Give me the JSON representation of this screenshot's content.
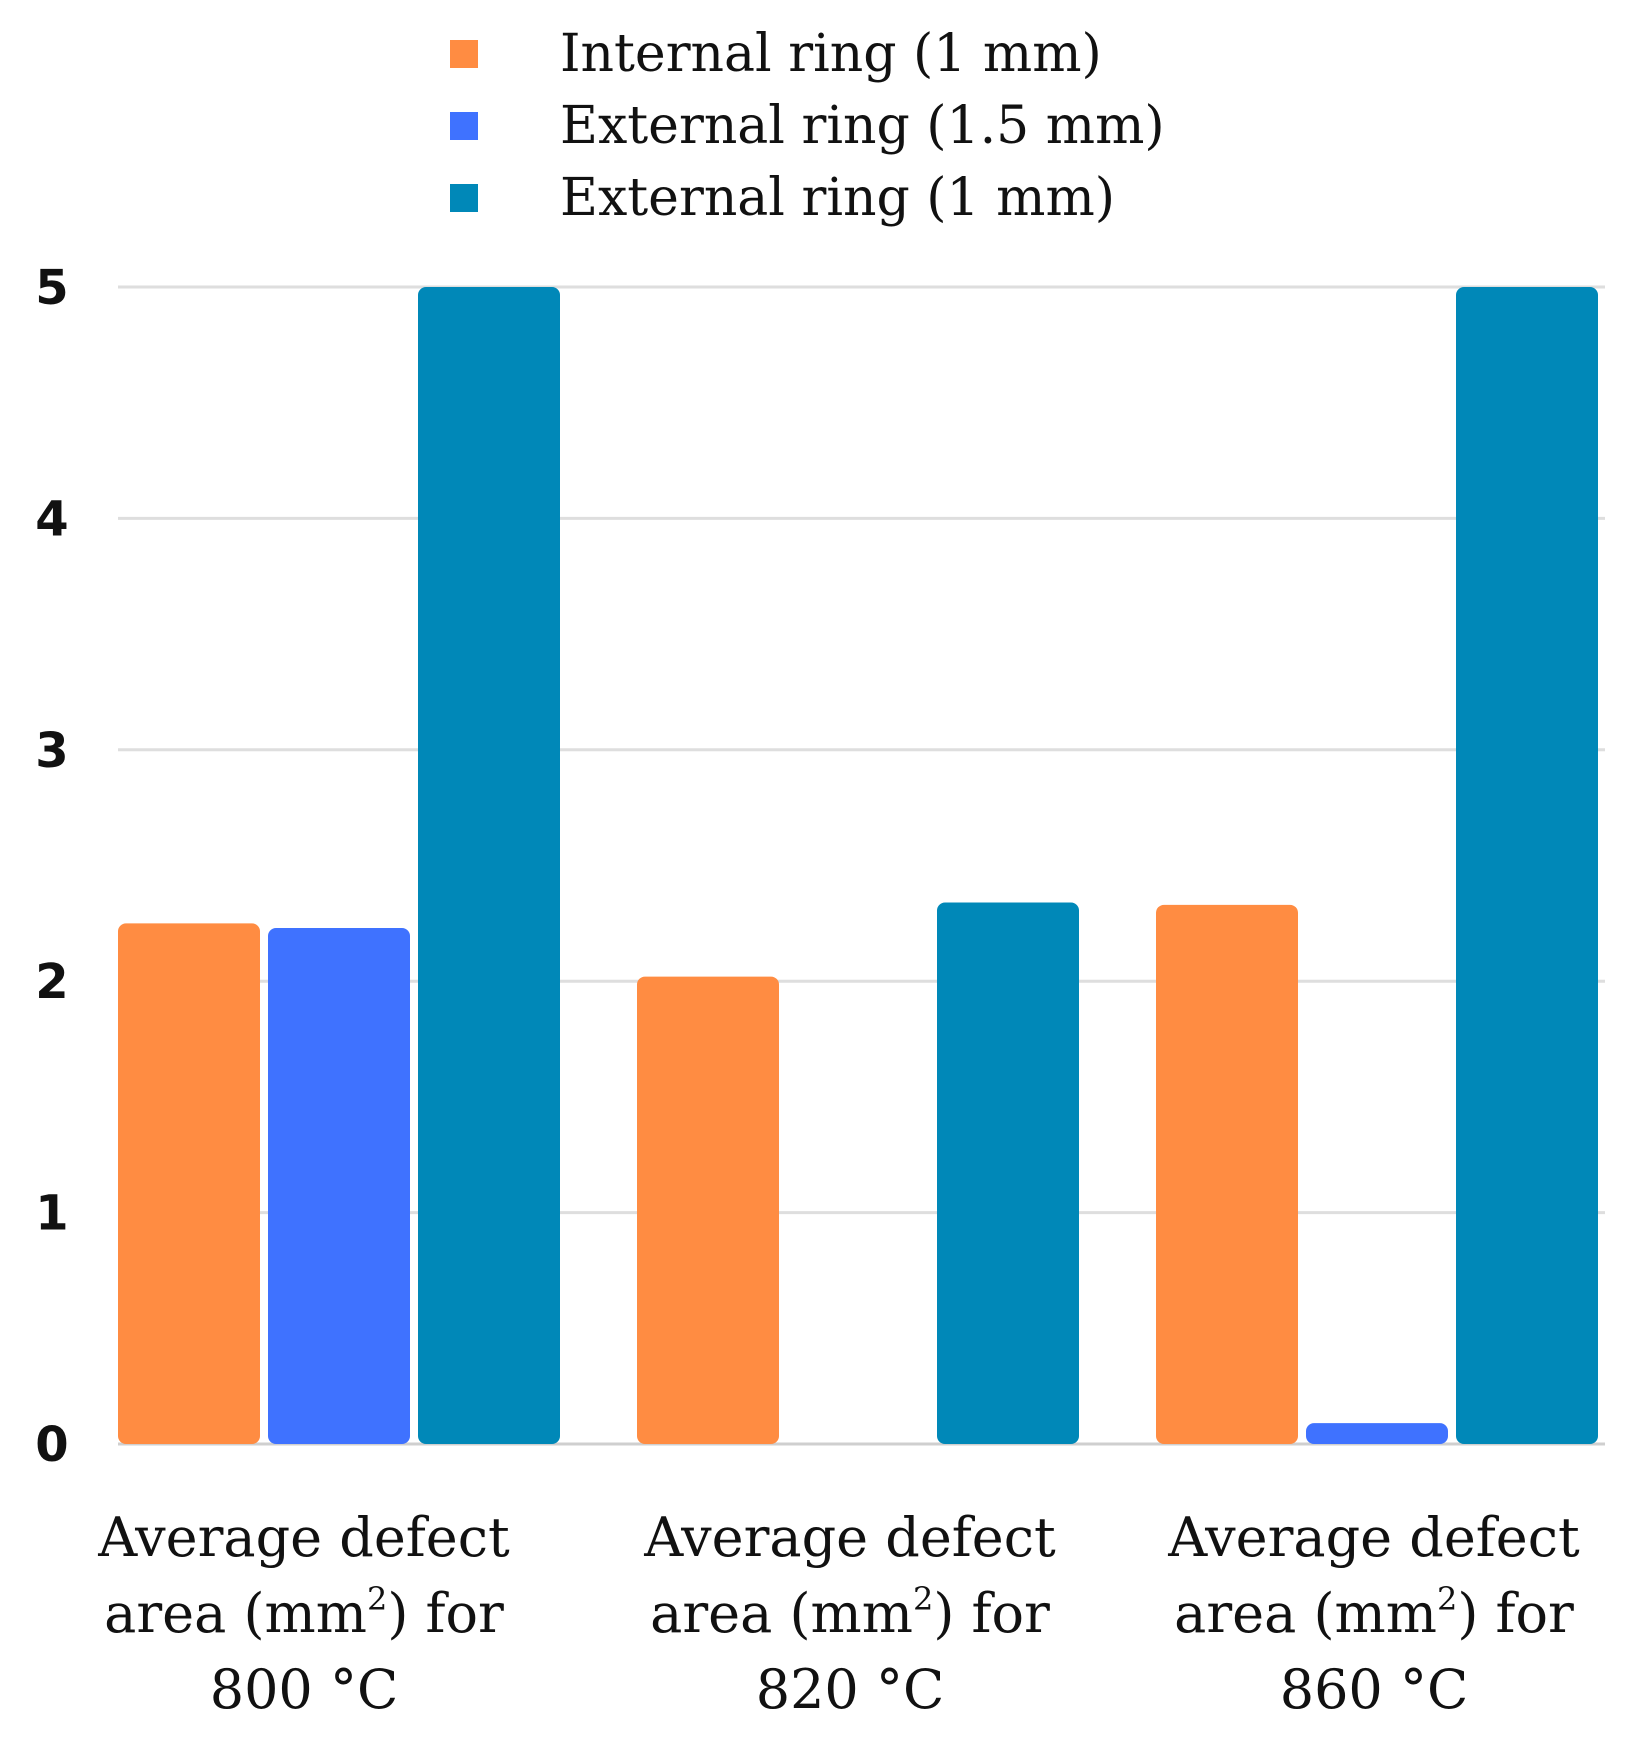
{
  "chart_data": {
    "type": "bar",
    "title": "",
    "xlabel": "",
    "ylabel": "",
    "ylim": [
      0,
      5
    ],
    "yticks": [
      "0",
      "1",
      "2",
      "3",
      "4",
      "5"
    ],
    "categories": [
      {
        "line1": "Average defect",
        "line2_pre": "area (mm",
        "line2_sup": "2",
        "line2_post": ") for",
        "line3": "800 °C"
      },
      {
        "line1": "Average defect",
        "line2_pre": "area (mm",
        "line2_sup": "2",
        "line2_post": ") for",
        "line3": "820 °C"
      },
      {
        "line1": "Average defect",
        "line2_pre": "area (mm",
        "line2_sup": "2",
        "line2_post": ") for",
        "line3": "860 °C"
      }
    ],
    "series": [
      {
        "name": "Internal ring (1 mm)",
        "color": "#ff8c42",
        "values": [
          2.25,
          2.02,
          2.33
        ]
      },
      {
        "name": "External ring (1.5 mm)",
        "color": "#3f72ff",
        "values": [
          2.23,
          0,
          0.09
        ]
      },
      {
        "name": "External ring (1 mm)",
        "color": "#0088b8",
        "values": [
          5,
          2.34,
          5
        ]
      }
    ],
    "grid": true,
    "legend_position": "top-center"
  }
}
